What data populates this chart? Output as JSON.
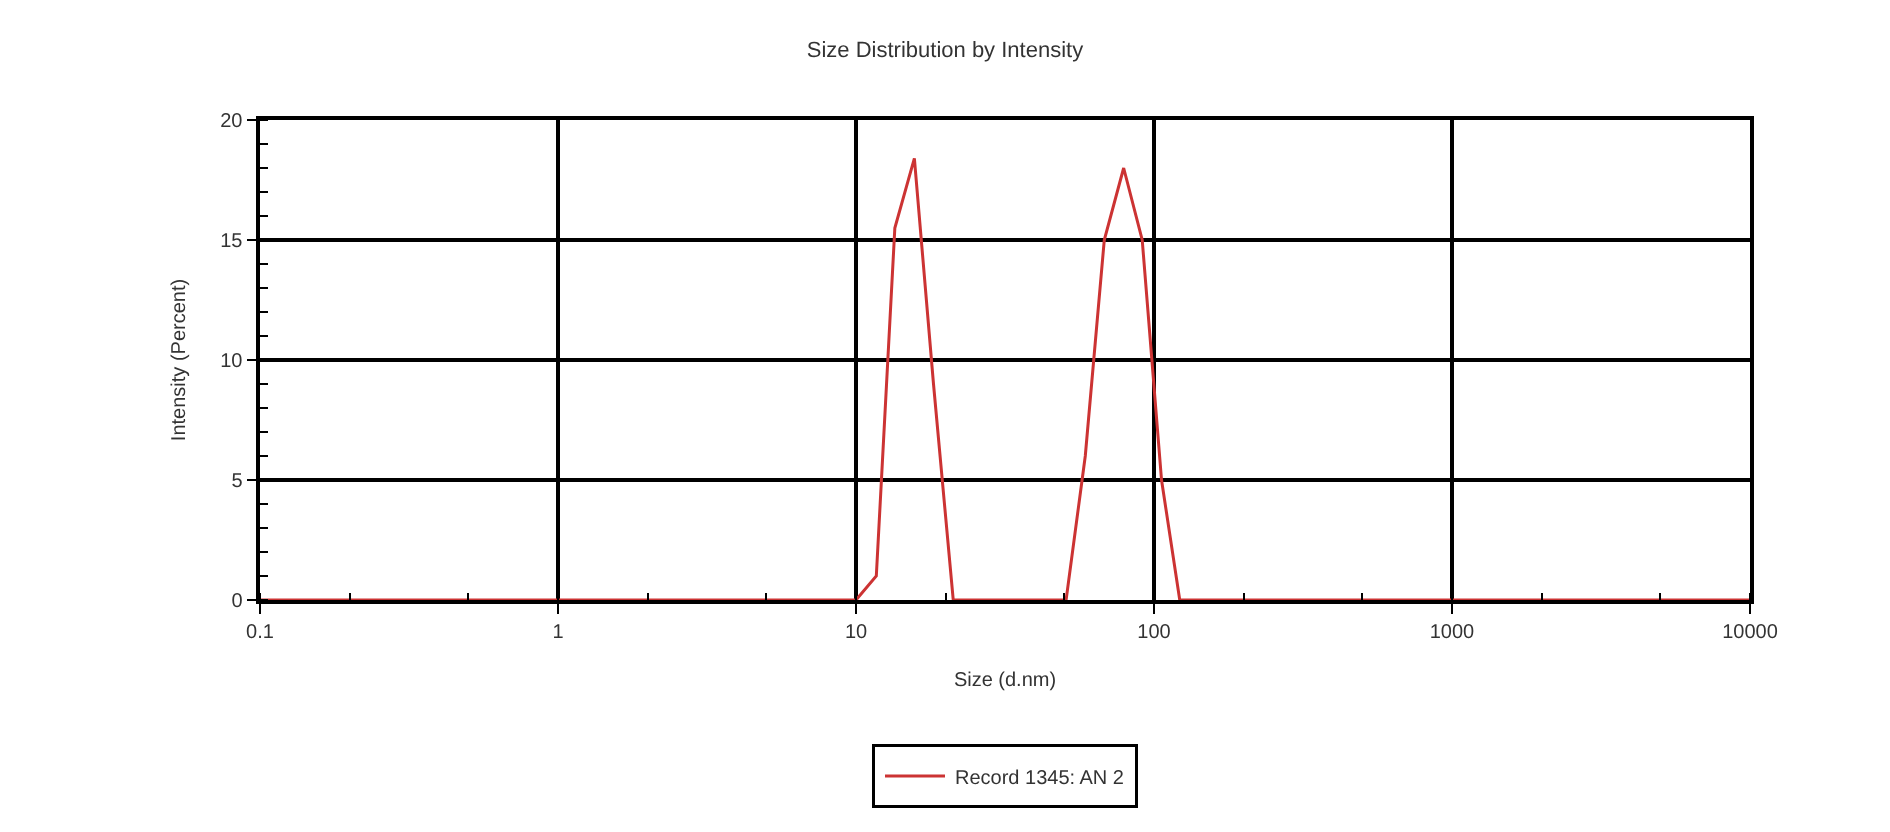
{
  "chart_data": {
    "type": "line",
    "title": "Size Distribution by Intensity",
    "xlabel": "Size (d.nm)",
    "ylabel": "Intensity (Percent)",
    "log": "x",
    "xlim": [
      0.1,
      10000
    ],
    "xticks": [
      0.1,
      1,
      10,
      100,
      1000,
      10000
    ],
    "ylim": [
      0,
      20
    ],
    "yticks": [
      0,
      5,
      10,
      15,
      20
    ],
    "grid": true,
    "legend": "bottom",
    "marker": "none",
    "line_style": "solid",
    "series": [
      {
        "name": "Record 1345: AN 2",
        "color": "#cc3333",
        "x": [
          0.1,
          10,
          11.7,
          13.5,
          15.7,
          18.2,
          21.2,
          50.7,
          58.8,
          68.1,
          79.1,
          91.3,
          106,
          122,
          10000
        ],
        "values": [
          0,
          0,
          1,
          15.5,
          18.4,
          9,
          0,
          0,
          6,
          15,
          18,
          15,
          5,
          0,
          0
        ]
      }
    ]
  }
}
